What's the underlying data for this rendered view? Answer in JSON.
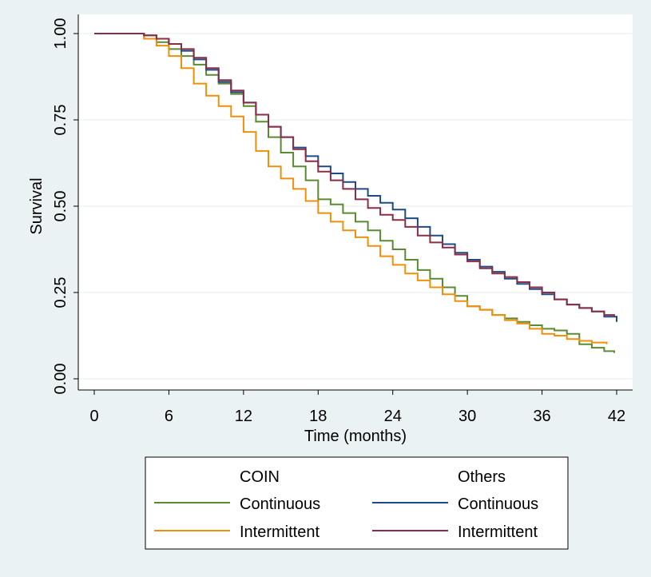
{
  "chart_data": {
    "type": "line",
    "title": "",
    "xlabel": "Time (months)",
    "ylabel": "Survival",
    "xlim": [
      0,
      42
    ],
    "ylim": [
      0,
      1
    ],
    "xticks": [
      0,
      6,
      12,
      18,
      24,
      30,
      36,
      42
    ],
    "xtick_labels": [
      "0",
      "6",
      "12",
      "18",
      "24",
      "30",
      "36",
      "42"
    ],
    "yticks": [
      0,
      0.25,
      0.5,
      0.75,
      1.0
    ],
    "ytick_labels": [
      "0.00",
      "0.25",
      "0.50",
      "0.75",
      "1.00"
    ],
    "grid": true,
    "step": true,
    "legend": {
      "placement": "bottom",
      "group_headers": [
        "COIN",
        "Others"
      ],
      "entries": [
        "Continuous",
        "Intermittent",
        "Continuous",
        "Intermittent"
      ]
    },
    "series": [
      {
        "group": "COIN",
        "name": "Continuous",
        "color": "#5a8a32",
        "x": [
          0,
          3,
          4,
          5,
          6,
          7,
          8,
          9,
          10,
          11,
          12,
          13,
          14,
          15,
          16,
          17,
          18,
          19,
          20,
          21,
          22,
          23,
          24,
          25,
          26,
          27,
          28,
          29,
          30,
          31,
          32,
          33,
          34,
          35,
          36,
          37,
          38,
          39,
          40,
          41,
          41.8
        ],
        "y": [
          1.0,
          1.0,
          0.985,
          0.975,
          0.955,
          0.935,
          0.91,
          0.88,
          0.855,
          0.825,
          0.79,
          0.745,
          0.7,
          0.655,
          0.615,
          0.575,
          0.52,
          0.505,
          0.48,
          0.455,
          0.43,
          0.4,
          0.375,
          0.345,
          0.315,
          0.29,
          0.265,
          0.24,
          0.21,
          0.2,
          0.185,
          0.175,
          0.165,
          0.155,
          0.145,
          0.14,
          0.13,
          0.1,
          0.09,
          0.08,
          0.075
        ]
      },
      {
        "group": "COIN",
        "name": "Intermittent",
        "color": "#f0900a",
        "x": [
          0,
          3,
          4,
          5,
          6,
          7,
          8,
          9,
          10,
          11,
          12,
          13,
          14,
          15,
          16,
          17,
          18,
          19,
          20,
          21,
          22,
          23,
          24,
          25,
          26,
          27,
          28,
          29,
          30,
          31,
          32,
          33,
          34,
          35,
          36,
          37,
          38,
          39,
          40,
          41.2
        ],
        "y": [
          1.0,
          1.0,
          0.985,
          0.965,
          0.935,
          0.9,
          0.855,
          0.82,
          0.79,
          0.76,
          0.715,
          0.66,
          0.615,
          0.58,
          0.55,
          0.515,
          0.48,
          0.455,
          0.43,
          0.41,
          0.385,
          0.355,
          0.33,
          0.305,
          0.285,
          0.265,
          0.245,
          0.225,
          0.21,
          0.2,
          0.185,
          0.17,
          0.16,
          0.145,
          0.13,
          0.125,
          0.115,
          0.11,
          0.105,
          0.1
        ]
      },
      {
        "group": "Others",
        "name": "Continuous",
        "color": "#1e4b86",
        "x": [
          0,
          3,
          4,
          5,
          6,
          7,
          8,
          9,
          10,
          11,
          12,
          13,
          14,
          15,
          16,
          17,
          18,
          19,
          20,
          21,
          22,
          23,
          24,
          25,
          26,
          27,
          28,
          29,
          30,
          31,
          32,
          33,
          34,
          35,
          36,
          37,
          38,
          39,
          40,
          41,
          42
        ],
        "y": [
          1.0,
          1.0,
          0.995,
          0.985,
          0.97,
          0.95,
          0.925,
          0.895,
          0.86,
          0.83,
          0.8,
          0.765,
          0.73,
          0.7,
          0.67,
          0.645,
          0.615,
          0.595,
          0.57,
          0.55,
          0.53,
          0.51,
          0.49,
          0.465,
          0.44,
          0.415,
          0.39,
          0.365,
          0.345,
          0.325,
          0.31,
          0.29,
          0.275,
          0.26,
          0.245,
          0.23,
          0.215,
          0.205,
          0.195,
          0.18,
          0.165
        ]
      },
      {
        "group": "Others",
        "name": "Intermittent",
        "color": "#8b2e45",
        "x": [
          0,
          3,
          4,
          5,
          6,
          7,
          8,
          9,
          10,
          11,
          12,
          13,
          14,
          15,
          16,
          17,
          18,
          19,
          20,
          21,
          22,
          23,
          24,
          25,
          26,
          27,
          28,
          29,
          30,
          31,
          32,
          33,
          34,
          35,
          36,
          37,
          38,
          39,
          40,
          41,
          41.8
        ],
        "y": [
          1.0,
          1.0,
          0.995,
          0.985,
          0.97,
          0.955,
          0.93,
          0.9,
          0.865,
          0.835,
          0.8,
          0.765,
          0.73,
          0.7,
          0.665,
          0.63,
          0.6,
          0.575,
          0.55,
          0.52,
          0.495,
          0.475,
          0.46,
          0.44,
          0.415,
          0.395,
          0.38,
          0.36,
          0.34,
          0.32,
          0.305,
          0.295,
          0.28,
          0.265,
          0.25,
          0.23,
          0.215,
          0.205,
          0.195,
          0.185,
          0.18
        ]
      }
    ]
  }
}
